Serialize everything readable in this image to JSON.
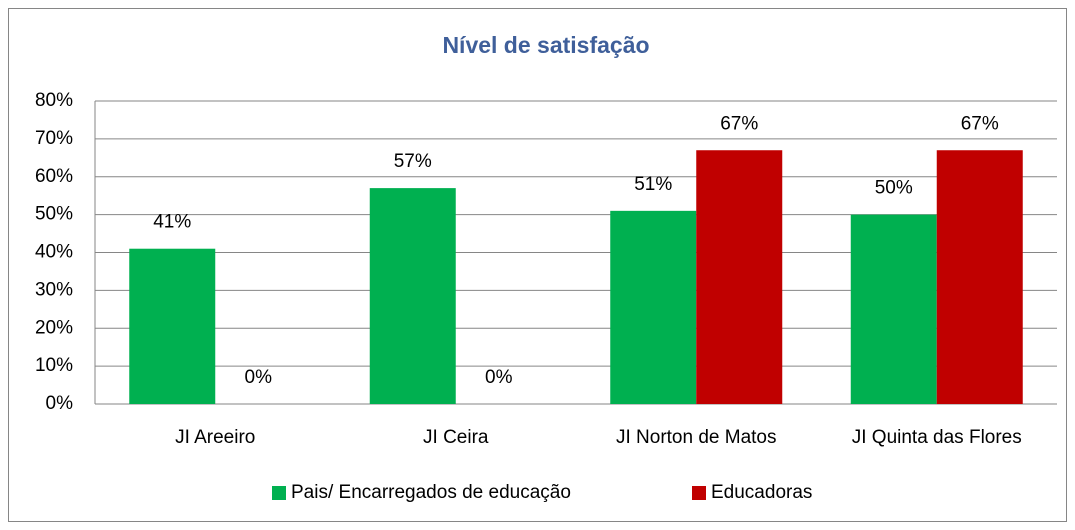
{
  "chart_data": {
    "type": "bar",
    "title": "Nível de satisfação",
    "categories": [
      "JI Areeiro",
      "JI Ceira",
      "JI Norton de Matos",
      "JI Quinta das Flores"
    ],
    "series": [
      {
        "name": "Pais/ Encarregados de educação",
        "color": "#00b050",
        "values": [
          41,
          57,
          51,
          50
        ],
        "value_labels": [
          "41%",
          "57%",
          "51%",
          "50%"
        ]
      },
      {
        "name": "Educadoras",
        "color": "#c00000",
        "values": [
          0,
          0,
          67,
          67
        ],
        "value_labels": [
          "0%",
          "0%",
          "67%",
          "67%"
        ]
      }
    ],
    "ylim": [
      0,
      80
    ],
    "yticks": [
      {
        "value": 0,
        "label": "0%"
      },
      {
        "value": 10,
        "label": "10%"
      },
      {
        "value": 20,
        "label": "20%"
      },
      {
        "value": 30,
        "label": "30%"
      },
      {
        "value": 40,
        "label": "40%"
      },
      {
        "value": 50,
        "label": "50%"
      },
      {
        "value": 60,
        "label": "60%"
      },
      {
        "value": 70,
        "label": "70%"
      },
      {
        "value": 80,
        "label": "80%"
      }
    ],
    "grid": true,
    "legend": "bottom"
  }
}
